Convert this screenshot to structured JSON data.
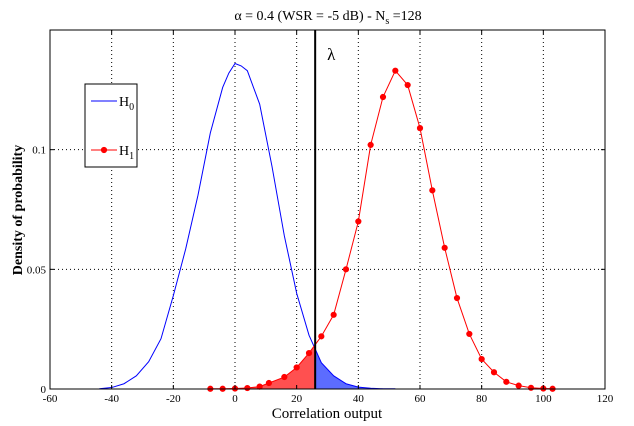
{
  "chart_data": {
    "type": "line",
    "title": "α = 0.4 (WSR = -5 dB) - N",
    "title_subscript": "s",
    "title_suffix": " =128",
    "xlabel": "Correlation output",
    "ylabel": "Density of probability",
    "xlim": [
      -60,
      120
    ],
    "ylim": [
      0,
      0.15
    ],
    "xticks": [
      -60,
      -40,
      -20,
      0,
      20,
      40,
      60,
      80,
      100,
      120
    ],
    "yticks": [
      {
        "value": 0,
        "label": "0"
      },
      {
        "value": 0.05,
        "label": "0.05"
      },
      {
        "value": 0.1,
        "label": "0.1"
      }
    ],
    "grid": true,
    "legend_position": "top-left",
    "threshold": {
      "x": 26,
      "label": "λ",
      "color": "#000000"
    },
    "series": [
      {
        "name": "H",
        "name_subscript": "0",
        "color": "#0000ff",
        "marker": "none",
        "x": [
          -44,
          -40,
          -36,
          -32,
          -28,
          -24,
          -20,
          -16,
          -12,
          -8,
          -4,
          -2,
          0,
          2,
          4,
          8,
          12,
          16,
          20,
          24,
          28,
          32,
          36,
          40,
          44,
          48,
          52
        ],
        "y": [
          0.0001,
          0.0006,
          0.0022,
          0.0055,
          0.0114,
          0.021,
          0.039,
          0.0585,
          0.081,
          0.107,
          0.126,
          0.132,
          0.136,
          0.135,
          0.133,
          0.119,
          0.093,
          0.064,
          0.04,
          0.0225,
          0.011,
          0.0055,
          0.0022,
          0.0008,
          0.0003,
          0.0001,
          0.0001
        ]
      },
      {
        "name": "H",
        "name_subscript": "1",
        "color": "#ff0000",
        "marker": "dot",
        "x": [
          -8,
          -4,
          0,
          4,
          8,
          11,
          16,
          20,
          24,
          28,
          32,
          36,
          40,
          44,
          48,
          52,
          56,
          60,
          64,
          68,
          72,
          76,
          80,
          84,
          88,
          92,
          96,
          100,
          103
        ],
        "y": [
          0.0001,
          0.0001,
          0.0002,
          0.0004,
          0.001,
          0.0025,
          0.005,
          0.009,
          0.015,
          0.022,
          0.031,
          0.05,
          0.07,
          0.102,
          0.122,
          0.133,
          0.127,
          0.109,
          0.083,
          0.059,
          0.038,
          0.023,
          0.0125,
          0.007,
          0.003,
          0.0014,
          0.0005,
          0.0002,
          0.0001
        ]
      }
    ],
    "fills": [
      {
        "series_index": 1,
        "x_range": [
          -60,
          26
        ],
        "color": "#ff5050"
      },
      {
        "series_index": 0,
        "x_range": [
          26,
          120
        ],
        "color": "#5c6cff"
      }
    ]
  }
}
